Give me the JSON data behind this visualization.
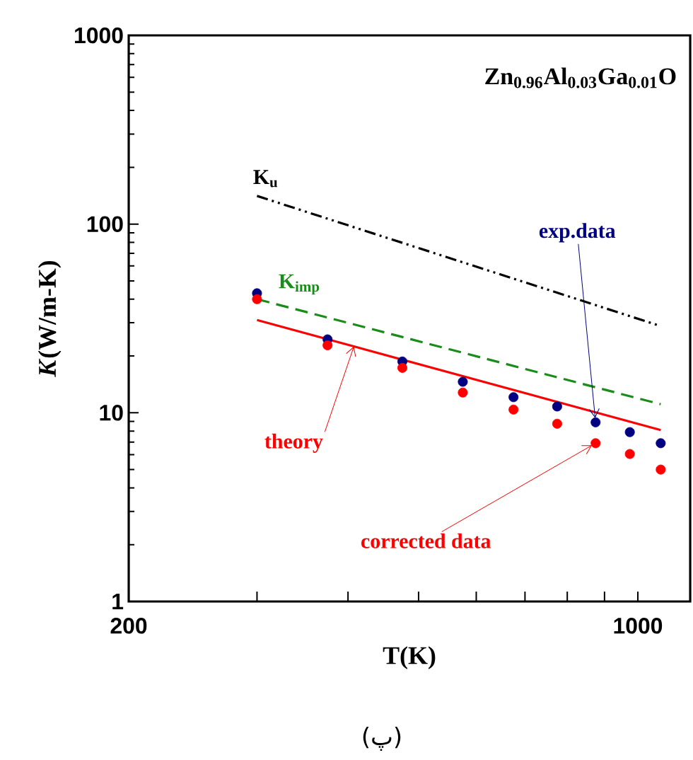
{
  "chart_data": {
    "type": "scatter",
    "title": "Zn$_{0.96}$Al$_{0.03}$Ga$_{0.01}$O",
    "xlabel": "T(K)",
    "ylabel": "*K*(W/m-K)",
    "log": "xy",
    "xlim": [
      200,
      1180
    ],
    "ylim": [
      1,
      1000
    ],
    "xticks": [
      200,
      {
        "value": 300,
        "label": null
      },
      {
        "value": 400,
        "label": null
      },
      {
        "value": 500,
        "label": null
      },
      {
        "value": 600,
        "label": null
      },
      {
        "value": 700,
        "label": null
      },
      {
        "value": 800,
        "label": null
      },
      {
        "value": 900,
        "label": null
      },
      1000
    ],
    "yticks": [
      1,
      10,
      100,
      1000
    ],
    "annotations": [
      "(پ)"
    ],
    "series": [
      {
        "name": "K$_{u}$",
        "type": "line",
        "line_style": "dashdotdotted",
        "marker": "none",
        "color": "#000000",
        "x": [
          300,
          1075
        ],
        "values": [
          141,
          28.8
        ]
      },
      {
        "name": "K$_{imp}$",
        "type": "line",
        "line_style": "dashed",
        "marker": "none",
        "color": "#1a8c1a",
        "x": [
          300,
          1075
        ],
        "values": [
          40,
          11.1
        ]
      },
      {
        "name": "theory",
        "type": "line",
        "line_style": "solid",
        "marker": "none",
        "color": "#ff0000",
        "x": [
          300,
          1075
        ],
        "values": [
          31,
          8.1
        ]
      },
      {
        "name": "exp.data",
        "marker": "circle",
        "color": "#000080",
        "x": [
          300,
          375,
          475,
          575,
          675,
          775,
          875,
          975,
          1075
        ],
        "values": [
          43,
          24.5,
          18.7,
          14.6,
          12.1,
          10.8,
          8.9,
          7.9,
          6.9
        ]
      },
      {
        "name": "corrected data",
        "marker": "circle",
        "color": "#ff0000",
        "x": [
          300,
          375,
          475,
          575,
          675,
          775,
          875,
          975,
          1075
        ],
        "values": [
          40,
          22.8,
          17.3,
          12.8,
          10.4,
          8.75,
          6.9,
          6.05,
          5.0
        ]
      }
    ]
  }
}
